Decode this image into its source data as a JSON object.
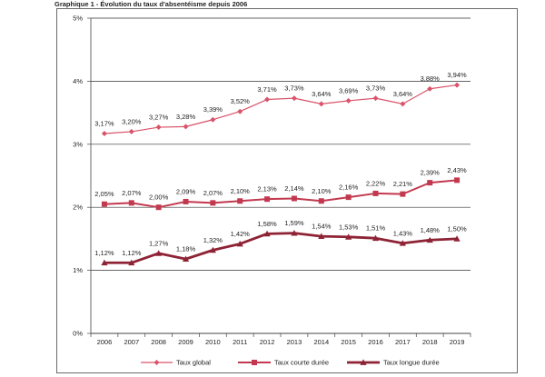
{
  "chart_data": {
    "type": "line",
    "title": "Graphique 1 - Évolution du taux d'absentéisme depuis 2006",
    "xlabel": "",
    "ylabel": "",
    "x": [
      "2006",
      "2007",
      "2008",
      "2009",
      "2010",
      "2011",
      "2012",
      "2013",
      "2014",
      "2015",
      "2016",
      "2017",
      "2018",
      "2019"
    ],
    "ylim": [
      0,
      5
    ],
    "yticks": [
      "0%",
      "1%",
      "2%",
      "3%",
      "4%",
      "5%"
    ],
    "grid": true,
    "legend_position": "bottom",
    "series": [
      {
        "name": "Taux global",
        "marker": "diamond",
        "color": "#d9536a",
        "line_width": "thin",
        "values": [
          3.17,
          3.2,
          3.27,
          3.28,
          3.39,
          3.52,
          3.71,
          3.73,
          3.64,
          3.69,
          3.73,
          3.64,
          3.88,
          3.94
        ],
        "labels": [
          "3,17%",
          "3,20%",
          "3,27%",
          "3,28%",
          "3,39%",
          "3,52%",
          "3,71%",
          "3,73%",
          "3,64%",
          "3,69%",
          "3,73%",
          "3,64%",
          "3,88%",
          "3,94%"
        ]
      },
      {
        "name": "Taux courte durée",
        "marker": "square",
        "color": "#c2394f",
        "line_width": "medium",
        "values": [
          2.05,
          2.07,
          2.0,
          2.09,
          2.07,
          2.1,
          2.13,
          2.14,
          2.1,
          2.16,
          2.22,
          2.21,
          2.39,
          2.43
        ],
        "labels": [
          "2,05%",
          "2,07%",
          "2,00%",
          "2,09%",
          "2,07%",
          "2,10%",
          "2,13%",
          "2,14%",
          "2,10%",
          "2,16%",
          "2,22%",
          "2,21%",
          "2,39%",
          "2,43%"
        ]
      },
      {
        "name": "Taux longue durée",
        "marker": "triangle",
        "color": "#8e2335",
        "line_width": "thick",
        "values": [
          1.12,
          1.12,
          1.27,
          1.18,
          1.32,
          1.42,
          1.58,
          1.59,
          1.54,
          1.53,
          1.51,
          1.43,
          1.48,
          1.5
        ],
        "labels": [
          "1,12%",
          "1,12%",
          "1,27%",
          "1,18%",
          "1,32%",
          "1,42%",
          "1,58%",
          "1,59%",
          "1,54%",
          "1,53%",
          "1,51%",
          "1,43%",
          "1,48%",
          "1,50%"
        ]
      }
    ]
  }
}
